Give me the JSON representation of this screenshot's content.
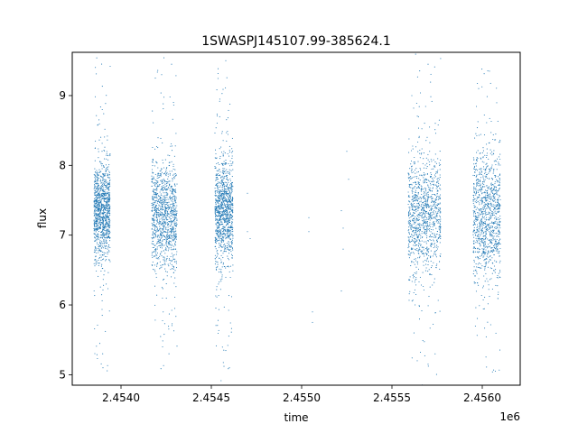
{
  "chart_data": {
    "type": "scatter",
    "title": "1SWASPJ145107.99-385624.1",
    "xlabel": "time",
    "ylabel": "flux",
    "x_offset_label": "1e6",
    "xlim": [
      2453730,
      2456210
    ],
    "ylim": [
      4.85,
      9.62
    ],
    "x_ticks": [
      2.454,
      2.4545,
      2.455,
      2.4555,
      2.456
    ],
    "x_tick_labels": [
      "2.4540",
      "2.4545",
      "2.4550",
      "2.4555",
      "2.4560"
    ],
    "y_ticks": [
      5,
      6,
      7,
      8,
      9
    ],
    "y_tick_labels": [
      "5",
      "6",
      "7",
      "8",
      "9"
    ],
    "grid": false,
    "legend": "none",
    "marker_color": "#1f77b4",
    "clusters": [
      {
        "x_start": 2453850,
        "x_end": 2453940,
        "y_center": 7.35,
        "y_low": 6.6,
        "y_high": 8.1
      },
      {
        "x_start": 2454170,
        "x_end": 2454310,
        "y_center": 7.3,
        "y_low": 6.5,
        "y_high": 8.2
      },
      {
        "x_start": 2454520,
        "x_end": 2454620,
        "y_center": 7.35,
        "y_low": 6.6,
        "y_high": 8.2
      },
      {
        "x_start": 2455590,
        "x_end": 2455770,
        "y_center": 7.3,
        "y_low": 6.4,
        "y_high": 8.2
      },
      {
        "x_start": 2455950,
        "x_end": 2456100,
        "y_center": 7.3,
        "y_low": 6.3,
        "y_high": 8.3
      }
    ],
    "sparse_points": [
      [
        2454700,
        7.6
      ],
      [
        2454700,
        7.05
      ],
      [
        2454715,
        6.95
      ],
      [
        2455040,
        7.25
      ],
      [
        2455040,
        7.05
      ],
      [
        2455060,
        5.9
      ],
      [
        2455060,
        5.75
      ],
      [
        2455220,
        7.35
      ],
      [
        2455230,
        6.8
      ],
      [
        2455220,
        6.2
      ],
      [
        2455230,
        7.1
      ],
      [
        2455250,
        8.2
      ],
      [
        2455260,
        7.8
      ],
      [
        2453900,
        5.1
      ],
      [
        2454230,
        5.4
      ],
      [
        2454570,
        5.12
      ],
      [
        2454600,
        5.1
      ],
      [
        2455640,
        5.2
      ],
      [
        2455700,
        5.15
      ],
      [
        2453940,
        9.42
      ],
      [
        2454280,
        9.45
      ],
      [
        2454580,
        9.5
      ],
      [
        2455700,
        9.45
      ],
      [
        2456040,
        9.35
      ],
      [
        2454190,
        9.25
      ],
      [
        2454225,
        9.3
      ],
      [
        2455610,
        9.0
      ],
      [
        2455980,
        9.1
      ]
    ]
  }
}
